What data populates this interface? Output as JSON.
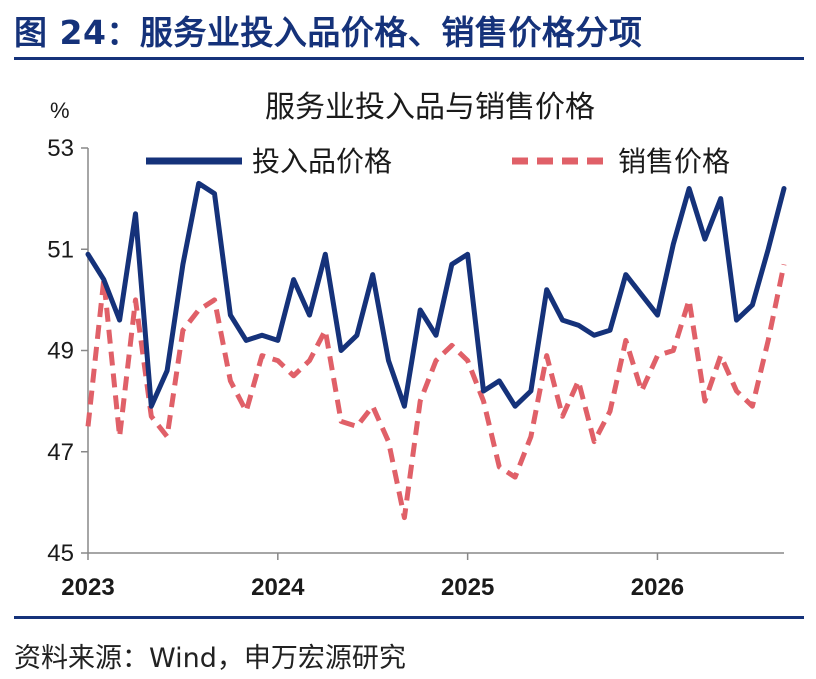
{
  "figure": {
    "title": "图 24：服务业投入品价格、销售价格分项",
    "source": "资料来源：Wind，申万宏源研究"
  },
  "chart_data": {
    "type": "line",
    "title": "服务业投入品与销售价格",
    "ylabel": "%",
    "xlabel": "",
    "ylim": [
      45,
      53
    ],
    "yticks": [
      45,
      47,
      49,
      51,
      53
    ],
    "xticks": [
      "2023",
      "2024",
      "2025",
      "2026"
    ],
    "legend_position": "top",
    "grid": false,
    "x": [
      "2023-01",
      "2023-02",
      "2023-03",
      "2023-04",
      "2023-05",
      "2023-06",
      "2023-07",
      "2023-08",
      "2023-09",
      "2023-10",
      "2023-11",
      "2023-12",
      "2024-01",
      "2024-02",
      "2024-03",
      "2024-04",
      "2024-05",
      "2024-06",
      "2024-07",
      "2024-08",
      "2024-09",
      "2024-10",
      "2024-11",
      "2024-12",
      "2025-01",
      "2025-02",
      "2025-03",
      "2025-04",
      "2025-05",
      "2025-06",
      "2025-07",
      "2025-08",
      "2025-09",
      "2025-10",
      "2025-11",
      "2025-12",
      "2026-01",
      "2026-02",
      "2026-03",
      "2026-04",
      "2026-05",
      "2026-06",
      "2026-07",
      "2026-08",
      "2026-09"
    ],
    "series": [
      {
        "name": "投入品价格",
        "color": "#15327a",
        "style": "solid",
        "values": [
          50.9,
          50.4,
          49.6,
          51.7,
          47.9,
          48.6,
          50.7,
          52.3,
          52.1,
          49.7,
          49.2,
          49.3,
          49.2,
          50.4,
          49.7,
          50.9,
          49.0,
          49.3,
          50.5,
          48.8,
          47.9,
          49.8,
          49.3,
          50.7,
          50.9,
          48.2,
          48.4,
          47.9,
          48.2,
          50.2,
          49.6,
          49.5,
          49.3,
          49.4,
          50.5,
          50.1,
          49.7,
          51.1,
          52.2,
          51.2,
          52.0,
          49.6,
          49.9,
          51.0,
          52.2
        ]
      },
      {
        "name": "销售价格",
        "color": "#e06068",
        "style": "dashed",
        "values": [
          47.5,
          50.4,
          47.3,
          50.0,
          47.7,
          47.3,
          49.4,
          49.8,
          50.0,
          48.4,
          47.8,
          48.9,
          48.8,
          48.5,
          48.8,
          49.4,
          47.6,
          47.5,
          47.9,
          47.2,
          45.7,
          48.0,
          48.8,
          49.1,
          48.8,
          48.0,
          46.7,
          46.5,
          47.3,
          48.9,
          47.7,
          48.4,
          47.2,
          47.8,
          49.2,
          48.2,
          48.9,
          49.0,
          50.0,
          48.0,
          48.9,
          48.2,
          47.9,
          49.2,
          50.7
        ]
      }
    ]
  }
}
